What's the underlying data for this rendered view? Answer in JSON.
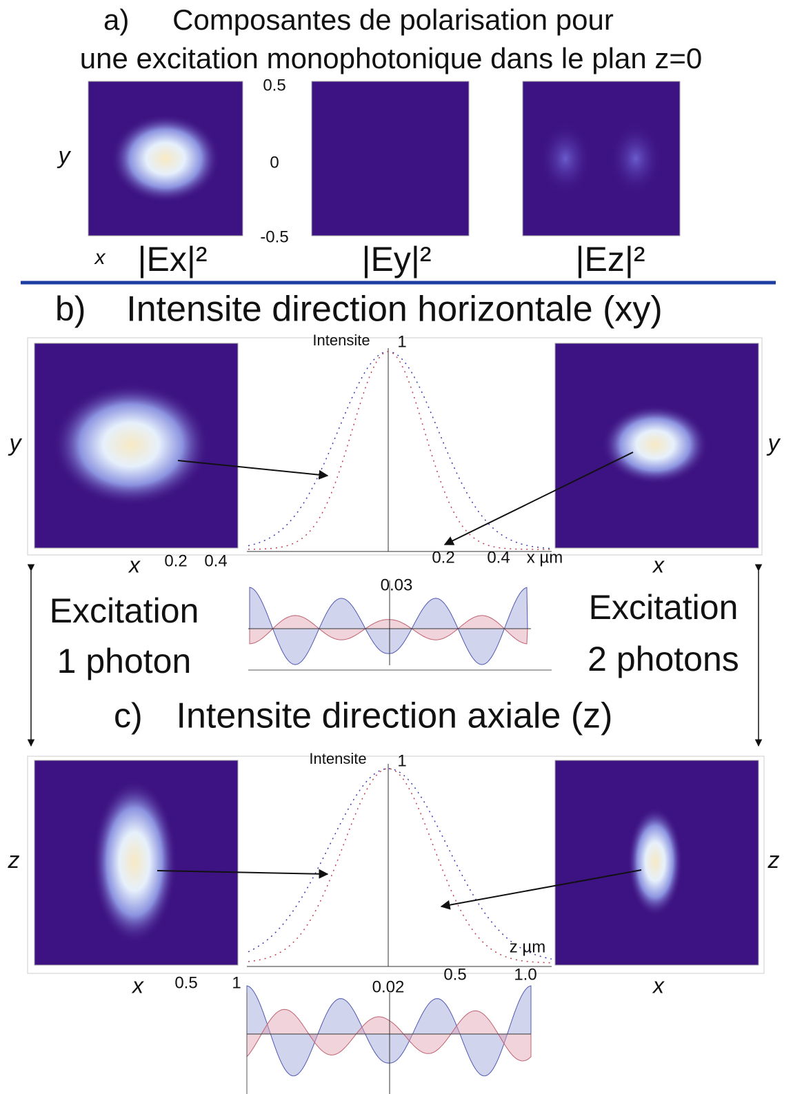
{
  "section_a": {
    "letter": "a)",
    "title_line1": "Composantes de polarisation pour",
    "title_line2": "une excitation monophotonique dans le plan z=0",
    "y_label": "y",
    "x_label": "x",
    "ticks": [
      "0.5",
      "0",
      "-0.5"
    ],
    "panels": [
      "|Ex|²",
      "|Ey|²",
      "|Ez|²"
    ]
  },
  "section_b": {
    "letter": "b)",
    "title": "Intensite direction horizontale (xy)",
    "plot_label": "Intensite",
    "plot_top": "1",
    "y_left": "y",
    "y_right": "y",
    "x_left": "x",
    "x_right": "x",
    "left_ticks": [
      "0.2",
      "0.4"
    ],
    "right_ticks": [
      "0.2",
      "0.4"
    ],
    "axis_unit": "x µm",
    "diff_max": "0.03"
  },
  "excitation": {
    "left_line1": "Excitation",
    "left_line2": "1 photon",
    "right_line1": "Excitation",
    "right_line2": "2 photons"
  },
  "section_c": {
    "letter": "c)",
    "title": "Intensite direction axiale (z)",
    "plot_label": "Intensite",
    "plot_top": "1",
    "z_left": "z",
    "z_right": "z",
    "x_left": "x",
    "x_right": "x",
    "left_ticks": [
      "0.5",
      "1"
    ],
    "right_ticks": [
      "0.5",
      "1.0"
    ],
    "axis_unit": "z µm",
    "diff_max": "0.02"
  }
}
